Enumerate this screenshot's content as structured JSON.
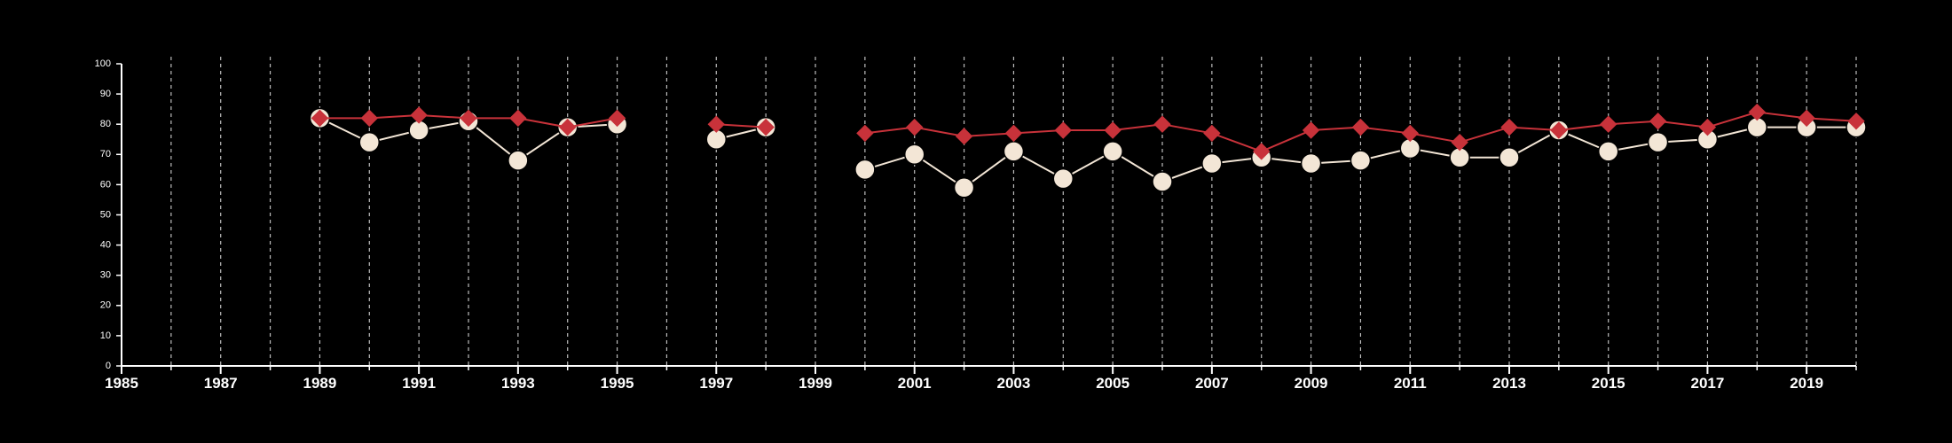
{
  "chart_data": {
    "type": "line",
    "title": "",
    "xlabel": "",
    "ylabel": "",
    "xlim": [
      1985,
      2020
    ],
    "ylim": [
      0,
      100
    ],
    "x_tick_labels": [
      "1985",
      "1987",
      "1989",
      "1991",
      "1993",
      "1995",
      "1997",
      "1999",
      "2001",
      "2003",
      "2005",
      "2007",
      "2009",
      "2011",
      "2013",
      "2015",
      "2017",
      "2019"
    ],
    "y_tick_labels": [
      "0",
      "10",
      "20",
      "30",
      "40",
      "50",
      "60",
      "70",
      "80",
      "90",
      "100"
    ],
    "grid": "vertical dashed at each year",
    "legend": "none",
    "series": [
      {
        "color": "#f3e6d6",
        "marker": "circle",
        "points": [
          [
            1989,
            82
          ],
          [
            1990,
            74
          ],
          [
            1991,
            78
          ],
          [
            1992,
            81
          ],
          [
            1993,
            68
          ],
          [
            1994,
            79
          ],
          [
            1995,
            80
          ],
          null,
          [
            1997,
            75
          ],
          [
            1998,
            79
          ],
          null,
          [
            2000,
            65
          ],
          [
            2001,
            70
          ],
          [
            2002,
            59
          ],
          [
            2003,
            71
          ],
          [
            2004,
            62
          ],
          [
            2005,
            71
          ],
          [
            2006,
            61
          ],
          [
            2007,
            67
          ],
          [
            2008,
            69
          ],
          [
            2009,
            67
          ],
          [
            2010,
            68
          ],
          [
            2011,
            72
          ],
          [
            2012,
            69
          ],
          [
            2013,
            69
          ],
          [
            2014,
            78
          ],
          [
            2015,
            71
          ],
          [
            2016,
            74
          ],
          [
            2017,
            75
          ],
          [
            2018,
            79
          ],
          [
            2019,
            79
          ],
          [
            2020,
            79
          ]
        ]
      },
      {
        "color": "#c8323a",
        "marker": "diamond",
        "points": [
          [
            1989,
            82
          ],
          [
            1990,
            82
          ],
          [
            1991,
            83
          ],
          [
            1992,
            82
          ],
          [
            1993,
            82
          ],
          [
            1994,
            79
          ],
          [
            1995,
            82
          ],
          null,
          [
            1997,
            80
          ],
          [
            1998,
            79
          ],
          null,
          [
            2000,
            77
          ],
          [
            2001,
            79
          ],
          [
            2002,
            76
          ],
          [
            2003,
            77
          ],
          [
            2004,
            78
          ],
          [
            2005,
            78
          ],
          [
            2006,
            80
          ],
          [
            2007,
            77
          ],
          [
            2008,
            71
          ],
          [
            2009,
            78
          ],
          [
            2010,
            79
          ],
          [
            2011,
            77
          ],
          [
            2012,
            74
          ],
          [
            2013,
            79
          ],
          [
            2014,
            78
          ],
          [
            2015,
            80
          ],
          [
            2016,
            81
          ],
          [
            2017,
            79
          ],
          [
            2018,
            84
          ],
          [
            2019,
            82
          ],
          [
            2020,
            81
          ]
        ]
      }
    ]
  }
}
